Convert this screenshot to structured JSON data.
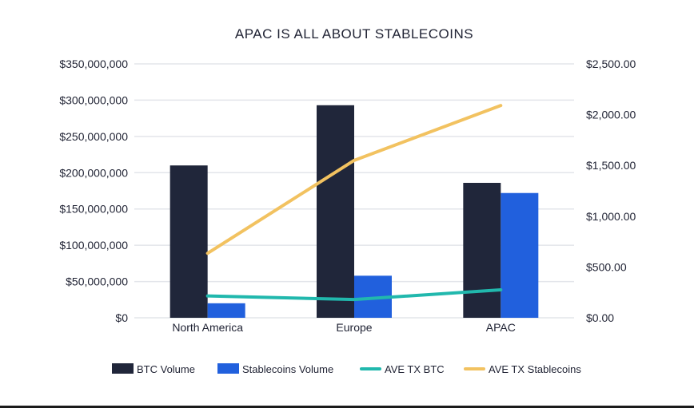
{
  "chart_data": {
    "type": "bar",
    "title": "APAC IS ALL ABOUT STABLECOINS",
    "categories": [
      "North America",
      "Europe",
      "APAC"
    ],
    "y_left": {
      "min": 0,
      "max": 350000000,
      "ticks": [
        0,
        50000000,
        100000000,
        150000000,
        200000000,
        250000000,
        300000000,
        350000000
      ],
      "tick_labels": [
        "$0",
        "$50,000,000",
        "$100,000,000",
        "$150,000,000",
        "$200,000,000",
        "$250,000,000",
        "$300,000,000",
        "$350,000,000"
      ]
    },
    "y_right": {
      "min": 0,
      "max": 2500,
      "ticks": [
        0,
        500,
        1000,
        1500,
        2000,
        2500
      ],
      "tick_labels": [
        "$0.00",
        "$500.00",
        "$1,000.00",
        "$1,500.00",
        "$2,000.00",
        "$2,500.00"
      ]
    },
    "grid": true,
    "legend_position": "bottom",
    "bar_series": [
      {
        "name": "BTC Volume",
        "color": "#20263a",
        "values": [
          210000000,
          293000000,
          186000000
        ]
      },
      {
        "name": "Stablecoins Volume",
        "color": "#2160dd",
        "values": [
          20000000,
          58000000,
          172000000
        ]
      }
    ],
    "line_series": [
      {
        "name": "AVE TX BTC",
        "color": "#21b8ad",
        "values": [
          215,
          180,
          275
        ]
      },
      {
        "name": "AVE TX Stablecoins",
        "color": "#f2c260",
        "values": [
          635,
          1550,
          2090
        ]
      }
    ]
  }
}
